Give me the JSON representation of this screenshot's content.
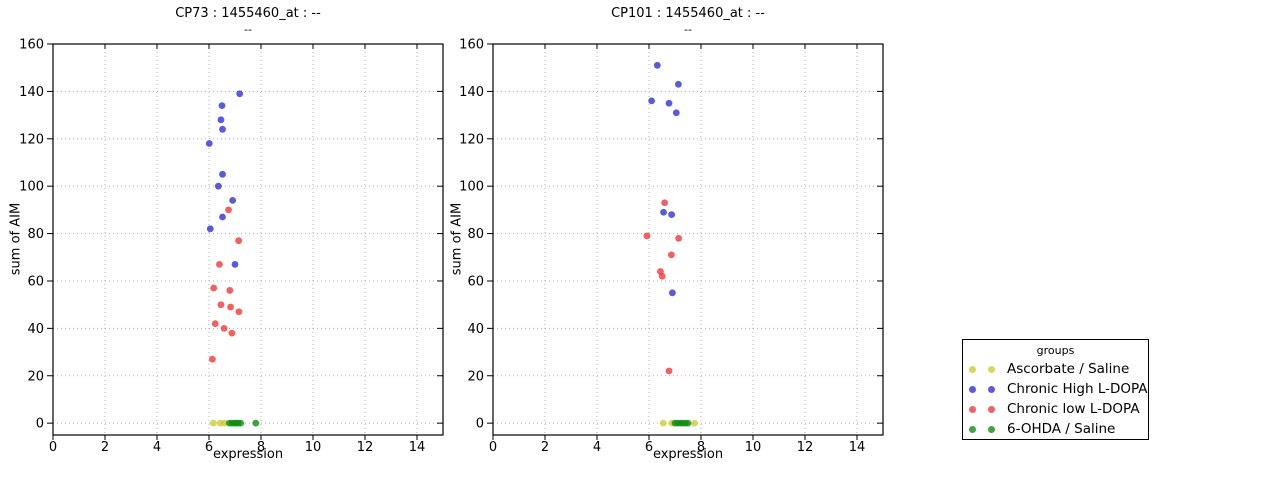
{
  "colors": {
    "ascorbate": "#cccc33",
    "chronic_high": "#3131d8",
    "chronic_low": "#f23737",
    "ohda": "#0f8c0f",
    "grid": "#b0b0b0",
    "frame": "#000000"
  },
  "legend": {
    "title": "groups",
    "entries": [
      {
        "label": "Ascorbate / Saline",
        "color": "#cccc33"
      },
      {
        "label": "Chronic High L-DOPA",
        "color": "#3131d8"
      },
      {
        "label": "Chronic low L-DOPA",
        "color": "#f23737"
      },
      {
        "label": "6-OHDA / Saline",
        "color": "#0f8c0f"
      }
    ]
  },
  "chart_data": [
    {
      "type": "scatter",
      "title": "CP73 : 1455460_at : --",
      "subtitle": "--",
      "xlabel": "expression",
      "ylabel": "sum of AIM",
      "xlim": [
        0,
        15
      ],
      "ylim": [
        -5,
        160
      ],
      "xticks": [
        0,
        2,
        4,
        6,
        8,
        10,
        12,
        14
      ],
      "yticks": [
        0,
        20,
        40,
        60,
        80,
        100,
        120,
        140,
        160
      ],
      "grid": "dotted",
      "series": [
        {
          "name": "Ascorbate / Saline",
          "color": "#cccc33",
          "points": [
            [
              6.17,
              0
            ],
            [
              6.43,
              0
            ],
            [
              6.59,
              0
            ]
          ]
        },
        {
          "name": "Chronic High L-DOPA",
          "color": "#3131d8",
          "points": [
            [
              6.01,
              118
            ],
            [
              6.05,
              82
            ],
            [
              6.36,
              100
            ],
            [
              6.46,
              128
            ],
            [
              6.5,
              134
            ],
            [
              6.52,
              124
            ],
            [
              6.52,
              105
            ],
            [
              6.52,
              87
            ],
            [
              6.91,
              94
            ],
            [
              7.0,
              67
            ],
            [
              7.18,
              139
            ]
          ]
        },
        {
          "name": "Chronic low L-DOPA",
          "color": "#f23737",
          "points": [
            [
              6.13,
              27
            ],
            [
              6.18,
              57
            ],
            [
              6.24,
              42
            ],
            [
              6.4,
              67
            ],
            [
              6.46,
              50
            ],
            [
              6.58,
              40
            ],
            [
              6.75,
              90
            ],
            [
              6.8,
              56
            ],
            [
              6.83,
              49
            ],
            [
              6.88,
              38
            ],
            [
              7.14,
              77
            ],
            [
              7.15,
              47
            ]
          ]
        },
        {
          "name": "6-OHDA / Saline",
          "color": "#0f8c0f",
          "points": [
            [
              6.78,
              0
            ],
            [
              6.88,
              0
            ],
            [
              6.97,
              0
            ],
            [
              7.05,
              0
            ],
            [
              7.12,
              0
            ],
            [
              7.22,
              0
            ],
            [
              7.8,
              0
            ]
          ]
        }
      ]
    },
    {
      "type": "scatter",
      "title": "CP101 : 1455460_at : --",
      "subtitle": "--",
      "xlabel": "expression",
      "ylabel": "sum of AIM",
      "xlim": [
        0,
        15
      ],
      "ylim": [
        -5,
        160
      ],
      "xticks": [
        0,
        2,
        4,
        6,
        8,
        10,
        12,
        14
      ],
      "yticks": [
        0,
        20,
        40,
        60,
        80,
        100,
        120,
        140,
        160
      ],
      "grid": "dotted",
      "series": [
        {
          "name": "Ascorbate / Saline",
          "color": "#cccc33",
          "points": [
            [
              6.55,
              0
            ],
            [
              6.88,
              0
            ],
            [
              7.75,
              0
            ]
          ]
        },
        {
          "name": "Chronic High L-DOPA",
          "color": "#3131d8",
          "points": [
            [
              6.1,
              136
            ],
            [
              6.32,
              151
            ],
            [
              6.56,
              89
            ],
            [
              6.77,
              135
            ],
            [
              6.87,
              88
            ],
            [
              6.9,
              55
            ],
            [
              7.05,
              131
            ],
            [
              7.13,
              143
            ]
          ]
        },
        {
          "name": "Chronic low L-DOPA",
          "color": "#f23737",
          "points": [
            [
              5.92,
              79
            ],
            [
              6.44,
              64
            ],
            [
              6.51,
              62
            ],
            [
              6.6,
              93
            ],
            [
              6.77,
              22
            ],
            [
              6.86,
              71
            ],
            [
              7.14,
              78
            ]
          ]
        },
        {
          "name": "6-OHDA / Saline",
          "color": "#0f8c0f",
          "points": [
            [
              7.0,
              0
            ],
            [
              7.1,
              0
            ],
            [
              7.2,
              0
            ],
            [
              7.3,
              0
            ],
            [
              7.4,
              0
            ],
            [
              7.5,
              0
            ]
          ]
        }
      ]
    }
  ]
}
